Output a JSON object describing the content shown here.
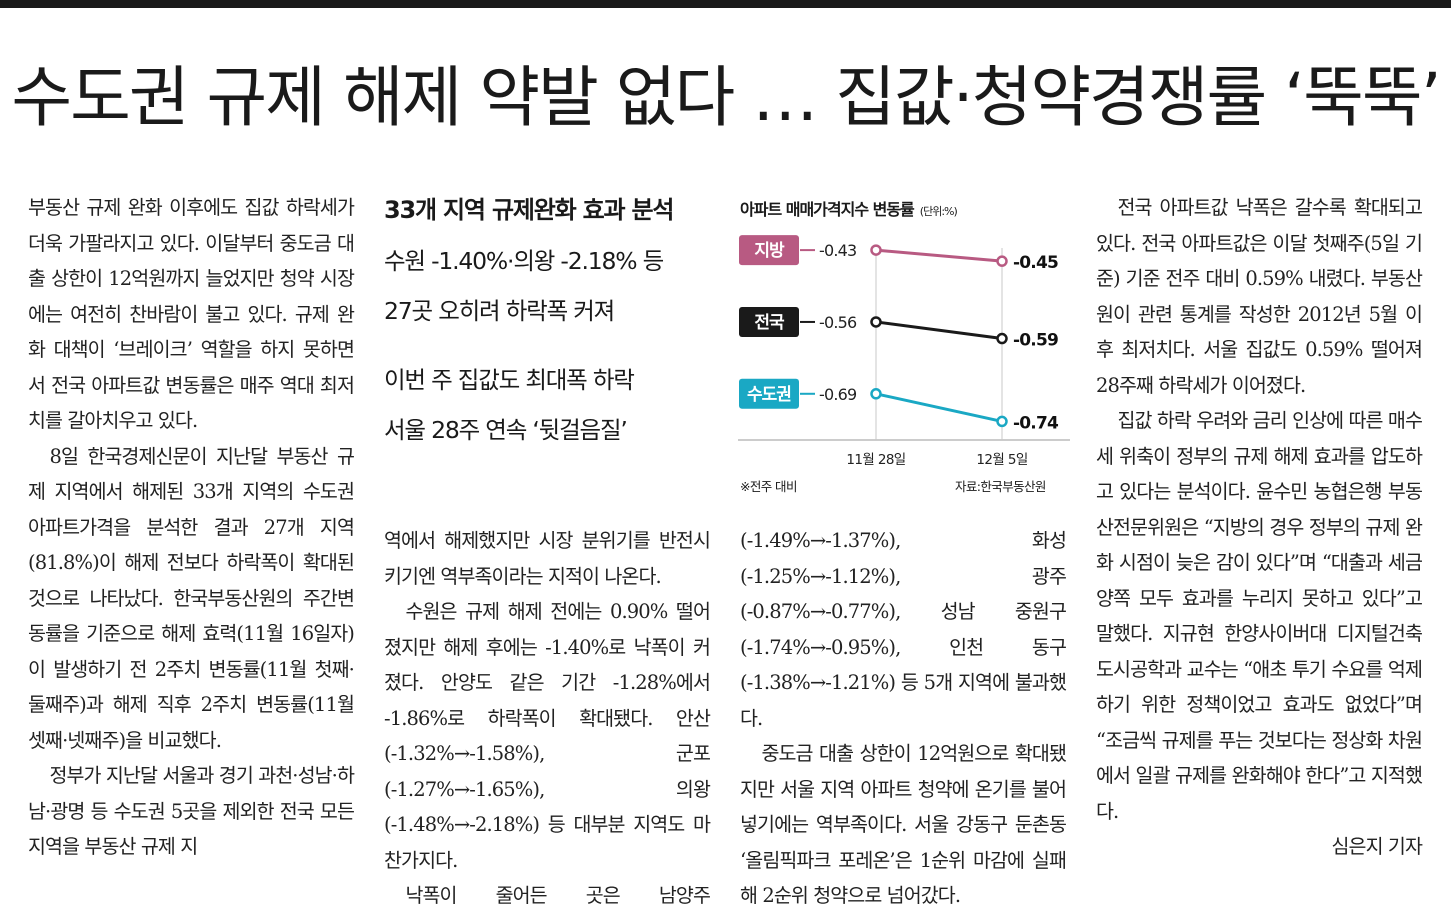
{
  "headline": "수도권 규제 해제 약발 없다 … 집값·청약경쟁률 ‘뚝뚝’",
  "subheads": {
    "lead": "33개 지역 규제완화 효과 분석",
    "lines1": [
      "수원 -1.40%·의왕 -2.18% 등",
      "27곳 오히려 하락폭 커져"
    ],
    "lines2": [
      "이번 주 집값도 최대폭 하락",
      "서울 28주 연속 ‘뒷걸음질’"
    ]
  },
  "columns": {
    "col1": [
      "부동산 규제 완화 이후에도 집값 하락세가 더욱 가팔라지고 있다. 이달부터 중도금 대출 상한이 12억원까지 늘었지만 청약 시장에는 여전히 찬바람이 불고 있다. 규제 완화 대책이 ‘브레이크’ 역할을 하지 못하면서 전국 아파트값 변동률은 매주 역대 최저치를 갈아치우고 있다.",
      "8일 한국경제신문이 지난달 부동산 규제 지역에서 해제된 33개 지역의 수도권 아파트가격을 분석한 결과 27개 지역(81.8%)이 해제 전보다 하락폭이 확대된 것으로 나타났다. 한국부동산원의 주간변동률을 기준으로 해제 효력(11월 16일자)이 발생하기 전 2주치 변동률(11월 첫째·둘째주)과 해제 직후 2주치 변동률(11월 셋째·넷째주)을 비교했다.",
      "정부가 지난달 서울과 경기 과천·성남·하남·광명 등 수도권 5곳을 제외한 전국 모든 지역을 부동산 규제 지"
    ],
    "col2": [
      "역에서 해제했지만 시장 분위기를 반전시키기엔 역부족이라는 지적이 나온다.",
      "수원은 규제 해제 전에는 0.90% 떨어졌지만 해제 후에는 -1.40%로 낙폭이 커졌다. 안양도 같은 기간 -1.28%에서 -1.86%로 하락폭이 확대됐다. 안산(-1.32%→-1.58%), 군포(-1.27%→-1.65%), 의왕(-1.48%→-2.18%) 등 대부분 지역도 마찬가지다.",
      "낙폭이 줄어든 곳은 남양주"
    ],
    "col3": [
      "(-1.49%→-1.37%), 화성(-1.25%→-1.12%), 광주(-0.87%→-0.77%), 성남 중원구(-1.74%→-0.95%), 인천 동구(-1.38%→-1.21%) 등 5개 지역에 불과했다.",
      "중도금 대출 상한이 12억원으로 확대됐지만 서울 지역 아파트 청약에 온기를 불어넣기에는 역부족이다. 서울 강동구 둔촌동 ‘올림픽파크 포레온’은 1순위 마감에 실패해 2순위 청약으로 넘어갔다."
    ],
    "col4": [
      "전국 아파트값 낙폭은 갈수록 확대되고 있다. 전국 아파트값은 이달 첫째주(5일 기준) 기준 전주 대비 0.59% 내렸다. 부동산원이 관련 통계를 작성한 2012년 5월 이후 최저치다. 서울 집값도 0.59% 떨어져 28주째 하락세가 이어졌다.",
      "집값 하락 우려와 금리 인상에 따른 매수세 위축이 정부의 규제 해제 효과를 압도하고 있다는 분석이다. 윤수민 농협은행 부동산전문위원은 “지방의 경우 정부의 규제 완화 시점이 늦은 감이 있다”며 “대출과 세금 양쪽 모두 효과를 누리지 못하고 있다”고 말했다. 지규현 한양사이버대 디지털건축도시공학과 교수는 “애초 투기 수요를 억제하기 위한 정책이었고 효과도 없었다”며 “조금씩 규제를 푸는 것보다는 정상화 차원에서 일괄 규제를 완화해야 한다”고 지적했다."
    ],
    "byline": "심은지 기자"
  },
  "chart_title": "아파트 매매가격지수 변동률",
  "chart_unit": "(단위:%)",
  "chart_note_left": "※전주 대비",
  "chart_note_right": "자료:한국부동산원",
  "chart_data": {
    "type": "line",
    "title": "아파트 매매가격지수 변동률",
    "unit": "(단위:%)",
    "categories": [
      "11월 28일",
      "12월 5일"
    ],
    "series": [
      {
        "name": "지방",
        "values": [
          -0.43,
          -0.45
        ],
        "color": "#b85a82"
      },
      {
        "name": "전국",
        "values": [
          -0.56,
          -0.59
        ],
        "color": "#1a1a1a"
      },
      {
        "name": "수도권",
        "values": [
          -0.69,
          -0.74
        ],
        "color": "#1aa8c4"
      }
    ],
    "value_labels": {
      "start": [
        "-0.43",
        "-0.56",
        "-0.69"
      ],
      "end": [
        "-0.45",
        "-0.59",
        "-0.74"
      ]
    },
    "ylim": [
      -0.77,
      -0.39
    ],
    "grid": false,
    "legend": "left"
  }
}
